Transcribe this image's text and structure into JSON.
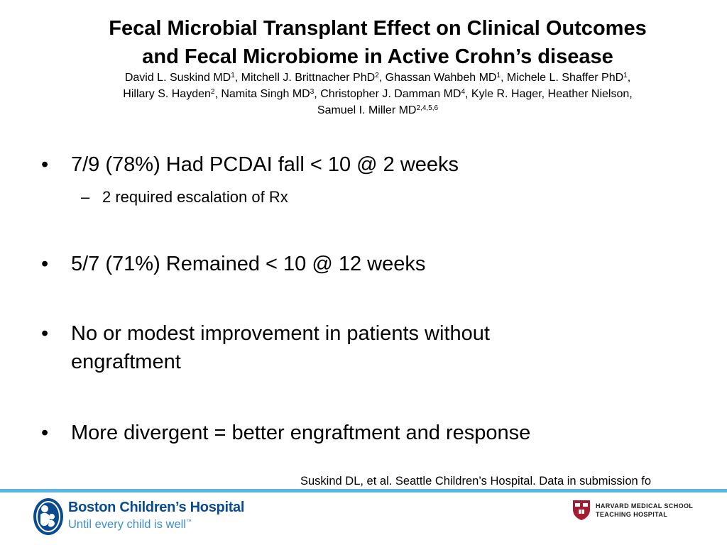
{
  "slide": {
    "title_line1": "Fecal Microbial Transplant Effect on Clinical Outcomes",
    "title_line2": "and Fecal Microbiome in Active Crohn’s disease",
    "authors": [
      [
        {
          "name": "David L. Suskind MD",
          "sup": "1",
          "sep": ", "
        },
        {
          "name": "Mitchell J. Brittnacher PhD",
          "sup": "2",
          "sep": ", "
        },
        {
          "name": "Ghassan Wahbeh MD",
          "sup": "1",
          "sep": ", "
        },
        {
          "name": "Michele L. Shaffer PhD",
          "sup": "1",
          "sep": ","
        }
      ],
      [
        {
          "name": "Hillary S. Hayden",
          "sup": "2",
          "sep": ", "
        },
        {
          "name": "Namita Singh MD",
          "sup": "3",
          "sep": ", "
        },
        {
          "name": "Christopher J. Damman MD",
          "sup": "4",
          "sep": ", "
        },
        {
          "name": "Kyle R. Hager, Heather Nielson,",
          "sup": "",
          "sep": ""
        }
      ],
      [
        {
          "name": "Samuel I. Miller MD",
          "sup": "2,4,5,6",
          "sep": ""
        }
      ]
    ],
    "bullets": [
      {
        "marker": "•",
        "text": "7/9 (78%) Had PCDAI fall < 10 @ 2 weeks",
        "sub": {
          "marker": "–",
          "text": "2 required escalation of Rx"
        }
      },
      {
        "marker": "•",
        "text": "5/7 (71%) Remained < 10 @ 12 weeks"
      },
      {
        "marker": "•",
        "text": "No or modest improvement in patients without engraftment"
      },
      {
        "marker": "•",
        "text": "More divergent = better engraftment and response"
      }
    ],
    "citation": "Suskind DL, et al. Seattle Children’s Hospital.  Data in submission fo"
  },
  "footer": {
    "rule_color": "#5ab4e5",
    "left_logo": {
      "name": "Boston Children’s Hospital",
      "tagline": "Until every child is well",
      "tagline_mark": "™",
      "brand_color": "#0a4a8f",
      "accent_color": "#3b8fd1"
    },
    "right_logo": {
      "line1": "HARVARD MEDICAL SCHOOL",
      "line2": "TEACHING HOSPITAL",
      "shield_color": "#a51c30"
    }
  }
}
